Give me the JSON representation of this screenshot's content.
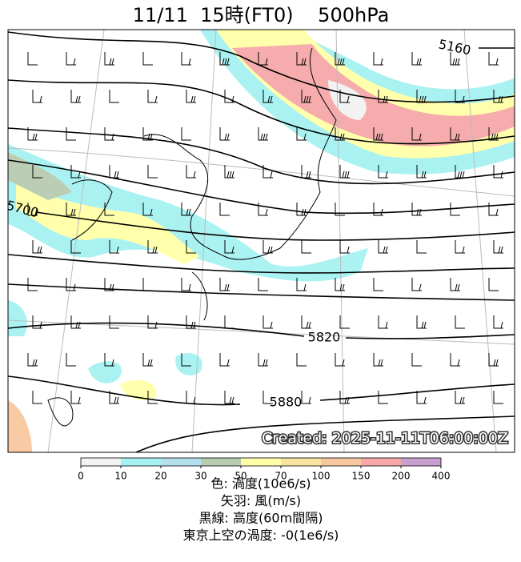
{
  "header": {
    "title": "11/11  15時(FT0)    500hPa"
  },
  "map": {
    "contour_labels": [
      "5160",
      "5700",
      "5820",
      "5880"
    ],
    "created": "Created: 2025-11-11T06:00:00Z"
  },
  "colorbar": {
    "ticks": [
      0,
      10,
      20,
      30,
      50,
      70,
      100,
      150,
      200,
      400
    ],
    "colors": [
      "#f2f2f2",
      "#a6f2f2",
      "#b4e0ee",
      "#b8ccb0",
      "#ffffa8",
      "#f8e4a0",
      "#f8c8a0",
      "#f6a8a8",
      "#c8a0d0"
    ]
  },
  "legend": [
    "色: 渦度(10e6/s)",
    "矢羽: 風(m/s)",
    "黒線: 高度(60m間隔)",
    "東京上空の渦度: -0(1e6/s)"
  ]
}
